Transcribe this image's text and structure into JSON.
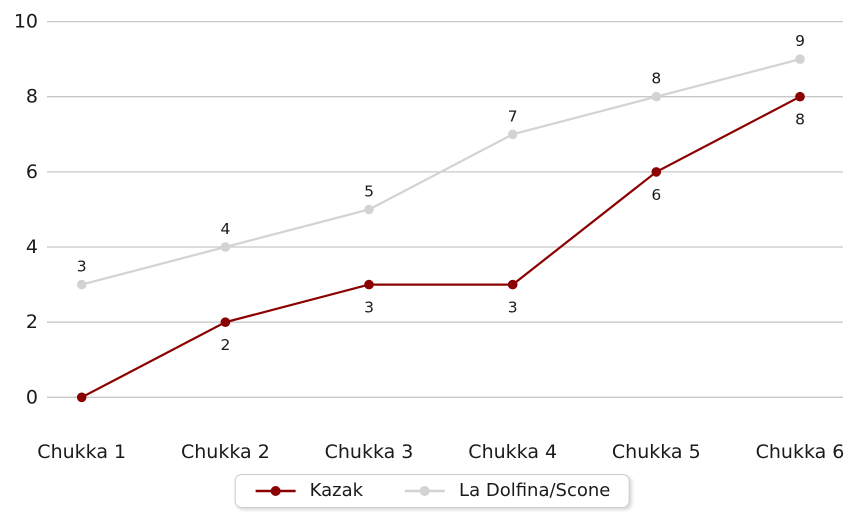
{
  "chart_data": {
    "type": "line",
    "title": "",
    "xlabel": "",
    "ylabel": "",
    "categories": [
      "Chukka 1",
      "Chukka 2",
      "Chukka 3",
      "Chukka 4",
      "Chukka 5",
      "Chukka 6"
    ],
    "series": [
      {
        "name": "Kazak",
        "color": "#8B0000",
        "values": [
          0,
          2,
          3,
          3,
          6,
          8
        ],
        "data_labels": [
          "",
          "2",
          "3",
          "3",
          "6",
          "8"
        ],
        "label_position": "below"
      },
      {
        "name": "La Dolfina/Scone",
        "color": "#D3D3D3",
        "values": [
          3,
          4,
          5,
          7,
          8,
          9
        ],
        "data_labels": [
          "3",
          "4",
          "5",
          "7",
          "8",
          "9"
        ],
        "label_position": "above"
      }
    ],
    "ylim": [
      0,
      10
    ],
    "yticks": [
      0,
      2,
      4,
      6,
      8,
      10
    ],
    "grid": "horizontal-only",
    "legend_position": "bottom-center"
  },
  "colors": {
    "background": "#ffffff",
    "gridline": "#c8c8c8",
    "tick_text": "#1a1a1a",
    "data_label_text": "#1a1a1a",
    "legend_border": "#cccccc"
  }
}
